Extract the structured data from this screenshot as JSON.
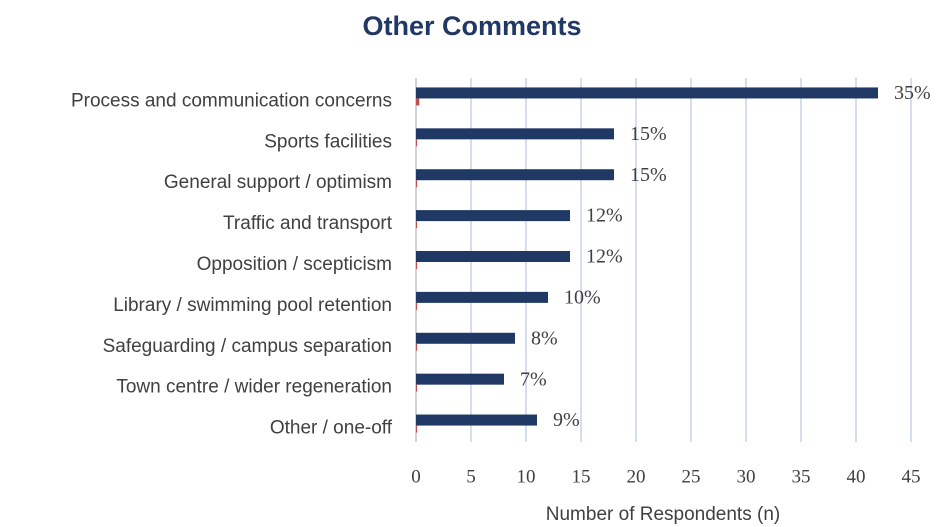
{
  "chart_data": {
    "type": "bar",
    "orientation": "horizontal",
    "title": "Other Comments",
    "x_label": "Number of Respondents (n)",
    "categories": [
      "Process and communication concerns",
      "Sports facilities",
      "General support / optimism",
      "Traffic and transport",
      "Opposition / scepticism",
      "Library / swimming pool retention",
      "Safeguarding / campus separation",
      "Town centre / wider regeneration",
      "Other / one-off"
    ],
    "series": [
      {
        "color": "#1f3864",
        "values": [
          42,
          18,
          18,
          14,
          14,
          12,
          9,
          8,
          11
        ],
        "value_labels": [
          "35%",
          "15%",
          "15%",
          "12%",
          "12%",
          "10%",
          "8%",
          "7%",
          "9%"
        ]
      },
      {
        "color": "#c0504d",
        "values": [
          0.3,
          0.1,
          0.1,
          0.1,
          0.1,
          0.1,
          0.1,
          0.1,
          0.1
        ]
      }
    ],
    "xlim": [
      0,
      45
    ],
    "xticks": [
      0,
      5,
      10,
      15,
      20,
      25,
      30,
      35,
      40,
      45
    ],
    "grid": true
  }
}
